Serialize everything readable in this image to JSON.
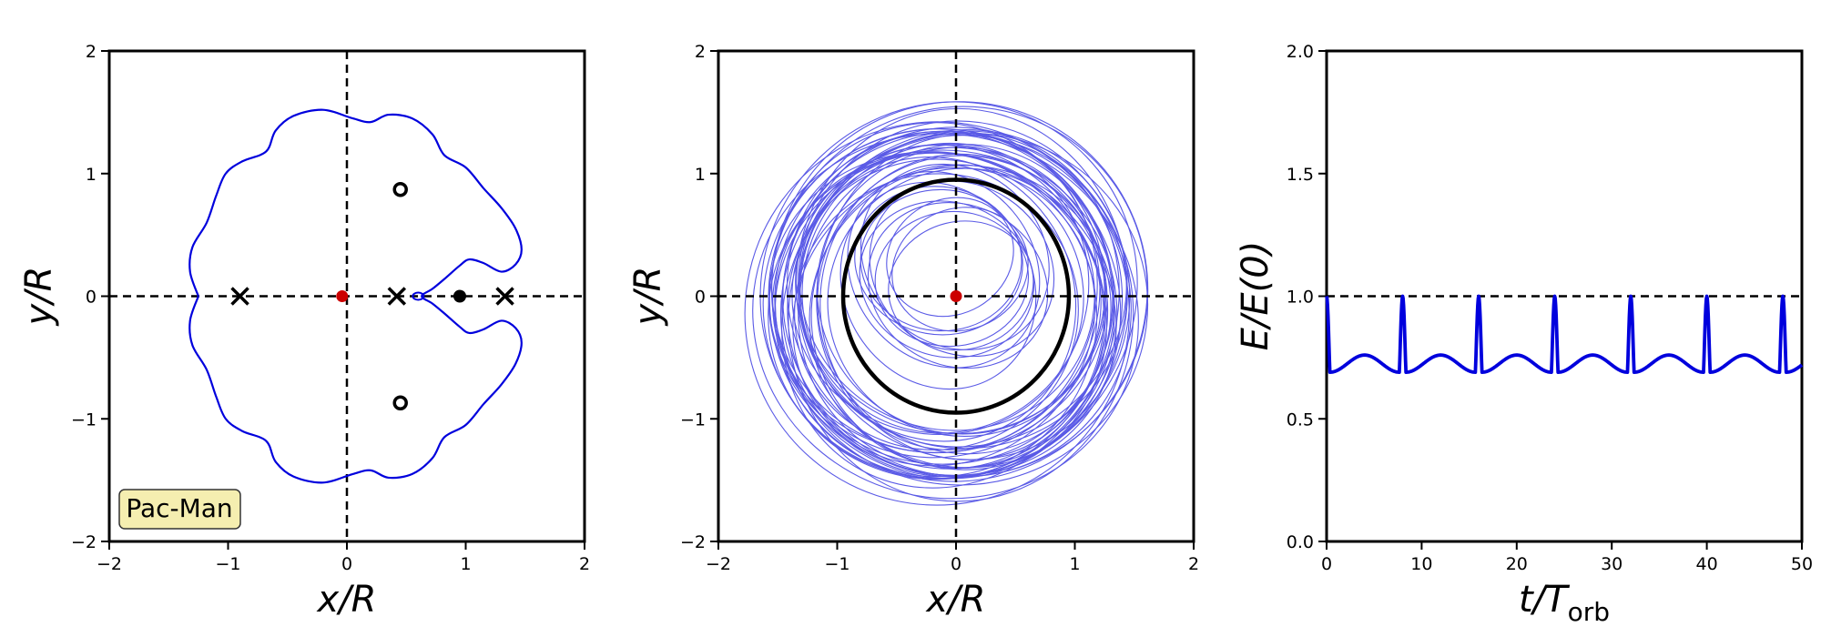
{
  "figure": {
    "colors": {
      "curve": "#0000dd",
      "orbit": "#5a5ae6",
      "primary": "#cc0000",
      "ring": "#000000",
      "annotation_fill": "#f5eeb0"
    }
  },
  "chart_data": [
    {
      "type": "line",
      "panel": "left",
      "xlabel": "x/R",
      "ylabel": "y/R",
      "xlim": [
        -2,
        2
      ],
      "ylim": [
        -2,
        2
      ],
      "xticks": [
        "−2",
        "−1",
        "0",
        "1",
        "2"
      ],
      "yticks": [
        "−2",
        "−1",
        "0",
        "1",
        "2"
      ],
      "grid": false,
      "reference_lines": {
        "x": 0,
        "y": 0
      },
      "annotation": "Pac-Man",
      "annotation_placement": "bottom-left",
      "markers": {
        "cross": [
          [
            -0.9,
            0
          ],
          [
            0.42,
            0
          ],
          [
            1.33,
            0
          ]
        ],
        "open_circle": [
          [
            0.45,
            0.87
          ],
          [
            0.45,
            -0.87
          ]
        ],
        "filled_black": [
          [
            0.95,
            0
          ]
        ],
        "filled_red": [
          [
            -0.04,
            0
          ]
        ]
      },
      "curve": {
        "description_points": "boundary curve (upper half, mirrored about y=0)",
        "upper_half": [
          [
            -1.25,
            0
          ],
          [
            -1.32,
            0.2
          ],
          [
            -1.3,
            0.4
          ],
          [
            -1.18,
            0.6
          ],
          [
            -1.1,
            0.82
          ],
          [
            -1.02,
            1.0
          ],
          [
            -0.88,
            1.1
          ],
          [
            -0.68,
            1.18
          ],
          [
            -0.6,
            1.35
          ],
          [
            -0.45,
            1.47
          ],
          [
            -0.2,
            1.52
          ],
          [
            0.05,
            1.45
          ],
          [
            0.2,
            1.42
          ],
          [
            0.35,
            1.48
          ],
          [
            0.55,
            1.45
          ],
          [
            0.72,
            1.32
          ],
          [
            0.82,
            1.15
          ],
          [
            1.0,
            1.05
          ],
          [
            1.15,
            0.88
          ],
          [
            1.3,
            0.72
          ],
          [
            1.42,
            0.55
          ],
          [
            1.47,
            0.38
          ],
          [
            1.42,
            0.26
          ],
          [
            1.3,
            0.2
          ],
          [
            1.15,
            0.27
          ],
          [
            1.03,
            0.3
          ],
          [
            0.95,
            0.25
          ],
          [
            0.82,
            0.14
          ],
          [
            0.72,
            0.06
          ],
          [
            0.63,
            0.0
          ]
        ]
      }
    },
    {
      "type": "line",
      "panel": "middle",
      "xlabel": "x/R",
      "ylabel": "y/R",
      "xlim": [
        -2,
        2
      ],
      "ylim": [
        -2,
        2
      ],
      "xticks": [
        "−2",
        "−1",
        "0",
        "1",
        "2"
      ],
      "yticks": [
        "−2",
        "−1",
        "0",
        "1",
        "2"
      ],
      "grid": false,
      "reference_lines": {
        "x": 0,
        "y": 0
      },
      "ring_radius": 0.95,
      "center_marker": [
        0,
        0
      ],
      "orbit_band": {
        "inner_radius": 1.15,
        "outer_radius": 1.55,
        "center_offset": [
          -0.05,
          -0.05
        ]
      },
      "inner_loops_radius_range": [
        0.55,
        0.9
      ]
    },
    {
      "type": "line",
      "panel": "right",
      "xlabel": "t/T",
      "xlabel_subscript": "orb",
      "ylabel": "E/E(0)",
      "xlim": [
        0,
        50
      ],
      "ylim": [
        0.0,
        2.0
      ],
      "xticks": [
        "0",
        "10",
        "20",
        "30",
        "40",
        "50"
      ],
      "yticks": [
        "0.0",
        "0.5",
        "1.0",
        "1.5",
        "2.0"
      ],
      "grid": false,
      "reference_lines": {
        "y": 1.0
      },
      "series": [
        {
          "period": 8.0,
          "peaks": [
            0,
            8,
            16,
            24,
            32,
            40,
            48
          ],
          "peak_value": 1.0,
          "min_value": 0.69,
          "mid_bump_value": 0.76
        }
      ]
    }
  ]
}
